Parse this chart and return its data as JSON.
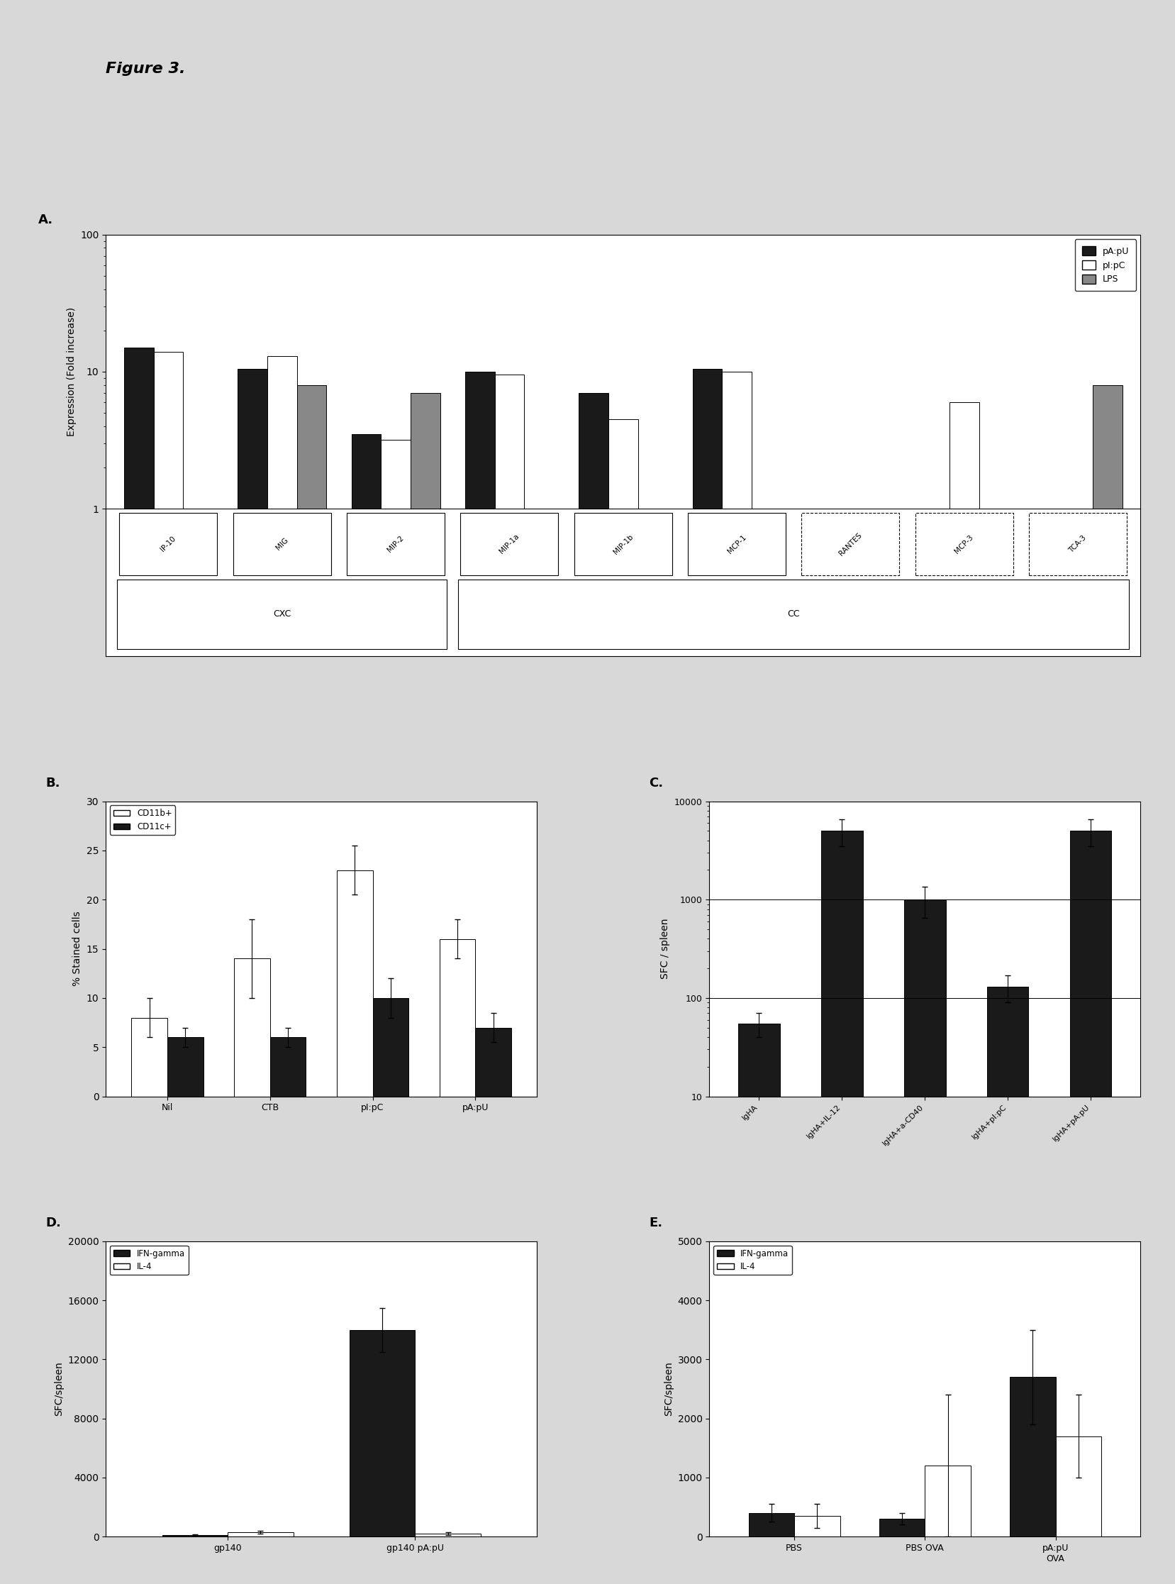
{
  "figure_title": "Figure 3.",
  "panel_A": {
    "label": "A.",
    "ylabel": "Expression (Fold increase)",
    "ylim_log": [
      1,
      100
    ],
    "categories": [
      "IP-10",
      "MIG",
      "MIP-2",
      "MIP-1a",
      "MIP-1b",
      "MCP-1",
      "RANTES",
      "MCP-3",
      "TCA-3"
    ],
    "pApu_values": [
      15,
      10.5,
      3.5,
      10,
      7,
      10.5,
      1,
      1,
      1
    ],
    "pIpC_values": [
      14,
      13,
      3.2,
      9.5,
      4.5,
      10,
      1,
      6,
      1
    ],
    "LPS_values": [
      1,
      8,
      7,
      1,
      1,
      1,
      1,
      1,
      8
    ],
    "CXC_indices": [
      0,
      1,
      2
    ],
    "CC_indices": [
      3,
      4,
      5,
      6,
      7,
      8
    ],
    "dashed_cats": [
      "RANTES",
      "MCP-3",
      "TCA-3"
    ],
    "legend_labels": [
      "pA:pU",
      "pI:pC",
      "LPS"
    ],
    "bar_colors": [
      "#1a1a1a",
      "#ffffff",
      "#888888"
    ]
  },
  "panel_B": {
    "label": "B.",
    "ylabel": "% Stained cells",
    "ylim": [
      0,
      30
    ],
    "yticks": [
      0,
      5,
      10,
      15,
      20,
      25,
      30
    ],
    "categories": [
      "Nil",
      "CTB",
      "pI:pC",
      "pA:pU"
    ],
    "CD11b_values": [
      8,
      14,
      23,
      16
    ],
    "CD11c_values": [
      6,
      6,
      10,
      7
    ],
    "CD11b_errors": [
      2,
      4,
      2.5,
      2
    ],
    "CD11c_errors": [
      1,
      1,
      2,
      1.5
    ],
    "legend_labels": [
      "CD11b+",
      "CD11c+"
    ],
    "bar_colors": [
      "#ffffff",
      "#1a1a1a"
    ]
  },
  "panel_C": {
    "label": "C.",
    "ylabel": "SFC / spleen",
    "ylim_log": [
      10,
      10000
    ],
    "categories": [
      "IgHA",
      "IgHA+IL-12",
      "IgHA+a-CD40",
      "IgHA+pI:pC",
      "IgHA+pA:pU"
    ],
    "IFN_values": [
      55,
      5000,
      1000,
      130,
      5000
    ],
    "IFN_errors": [
      15,
      1500,
      350,
      40,
      1500
    ],
    "bar_color": "#1a1a1a",
    "hlines": [
      100,
      1000
    ]
  },
  "panel_D": {
    "label": "D.",
    "ylabel": "SFC/spleen",
    "ylim": [
      0,
      20000
    ],
    "yticks": [
      0,
      4000,
      8000,
      12000,
      16000,
      20000
    ],
    "categories": [
      "gp140",
      "gp140 pA:pU"
    ],
    "IFN_values": [
      100,
      14000
    ],
    "IL4_values": [
      300,
      200
    ],
    "IFN_errors": [
      50,
      1500
    ],
    "IL4_errors": [
      100,
      80
    ],
    "legend_labels": [
      "IFN-gamma",
      "IL-4"
    ],
    "bar_colors": [
      "#1a1a1a",
      "#ffffff"
    ]
  },
  "panel_E": {
    "label": "E.",
    "ylabel": "SFC/spleen",
    "ylim": [
      0,
      5000
    ],
    "yticks": [
      0,
      1000,
      2000,
      3000,
      4000,
      5000
    ],
    "categories": [
      "PBS",
      "PBS OVA",
      "pA:pU\nOVA"
    ],
    "IFN_values": [
      400,
      300,
      2700
    ],
    "IL4_values": [
      350,
      1200,
      1700
    ],
    "IFN_errors": [
      150,
      100,
      800
    ],
    "IL4_errors": [
      200,
      1200,
      700
    ],
    "legend_labels": [
      "IFN-gamma",
      "IL-4"
    ],
    "bar_colors": [
      "#1a1a1a",
      "#ffffff"
    ]
  },
  "bg_color": "#d8d8d8",
  "plot_bg": "#ffffff"
}
